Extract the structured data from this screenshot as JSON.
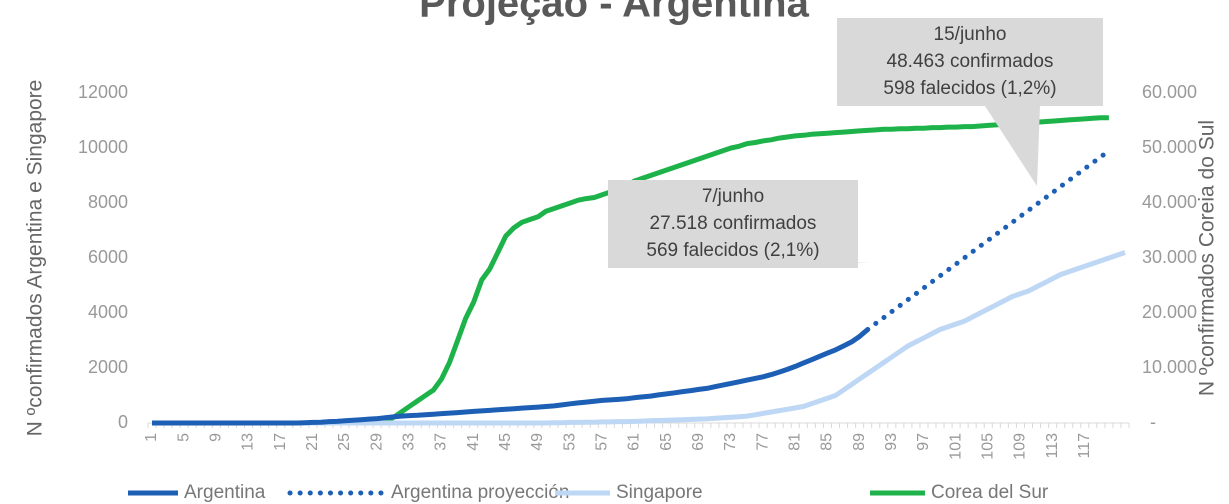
{
  "chart_data": {
    "type": "line",
    "title": "Projeção - Argentina",
    "ylabel": "N ºconfirmados Argentina e Singapore",
    "y2label": "N ºconfirmados Coreia do Sul",
    "categories": [
      1,
      null,
      null,
      null,
      5,
      null,
      null,
      null,
      9,
      null,
      null,
      null,
      13,
      null,
      null,
      null,
      17,
      null,
      null,
      null,
      21,
      null,
      null,
      null,
      25,
      null,
      null,
      null,
      29,
      null,
      null,
      null,
      33,
      null,
      null,
      null,
      37,
      null,
      null,
      null,
      41,
      null,
      null,
      null,
      45,
      null,
      null,
      null,
      49,
      null,
      null,
      null,
      53,
      null,
      null,
      null,
      57,
      null,
      null,
      null,
      61,
      null,
      null,
      null,
      65,
      null,
      null,
      null,
      69,
      null,
      null,
      null,
      73,
      null,
      null,
      null,
      77,
      null,
      null,
      null,
      81,
      null,
      null,
      null,
      85,
      null,
      null,
      null,
      89,
      null,
      null,
      null,
      93,
      null,
      null,
      null,
      97,
      null,
      null,
      null,
      101,
      null,
      null,
      null,
      105,
      null,
      null,
      null,
      109,
      null,
      null,
      null,
      113,
      null,
      null,
      null,
      117,
      null,
      null,
      null,
      null,
      null
    ],
    "ylim": [
      0,
      12000
    ],
    "yticks": [
      0,
      2000,
      4000,
      6000,
      8000,
      10000,
      12000
    ],
    "y2lim": [
      0,
      60000
    ],
    "y2ticks": [
      {
        "value": 0,
        "label": "-"
      },
      {
        "value": 10000,
        "label": "10.000"
      },
      {
        "value": 20000,
        "label": "20.000"
      },
      {
        "value": 30000,
        "label": "30.000"
      },
      {
        "value": 40000,
        "label": "40.000"
      },
      {
        "value": 50000,
        "label": "50.000"
      },
      {
        "value": 60000,
        "label": "60.000"
      }
    ],
    "legend": "bottom",
    "series": [
      {
        "name": "Argentina",
        "color": "#1c5fb5",
        "style": "solid",
        "values": [
          0,
          0,
          0,
          0,
          0,
          0,
          0,
          0,
          0,
          0,
          0,
          0,
          0,
          0,
          0,
          0,
          0,
          0,
          0,
          10,
          20,
          30,
          50,
          60,
          80,
          100,
          120,
          140,
          160,
          190,
          220,
          250,
          270,
          280,
          300,
          320,
          340,
          360,
          380,
          400,
          420,
          440,
          460,
          480,
          500,
          520,
          540,
          560,
          580,
          600,
          620,
          660,
          700,
          730,
          760,
          790,
          820,
          840,
          860,
          880,
          920,
          950,
          980,
          1020,
          1060,
          1100,
          1140,
          1180,
          1220,
          1260,
          1320,
          1380,
          1440,
          1500,
          1560,
          1620,
          1680,
          1760,
          1850,
          1950,
          2060,
          2180,
          2300,
          2420,
          2540,
          2660,
          2800,
          2950,
          3150,
          3400,
          null,
          null,
          null,
          null,
          null,
          null,
          null,
          null,
          null,
          null,
          null,
          null,
          null,
          null,
          null,
          null,
          null,
          null,
          null,
          null,
          null,
          null,
          null,
          null,
          null,
          null,
          null,
          null,
          null,
          null,
          null,
          null
        ]
      },
      {
        "name": "Argentina proyección",
        "color": "#1c5fb5",
        "style": "dotted",
        "values": [
          null,
          null,
          null,
          null,
          null,
          null,
          null,
          null,
          null,
          null,
          null,
          null,
          null,
          null,
          null,
          null,
          null,
          null,
          null,
          null,
          null,
          null,
          null,
          null,
          null,
          null,
          null,
          null,
          null,
          null,
          null,
          null,
          null,
          null,
          null,
          null,
          null,
          null,
          null,
          null,
          null,
          null,
          null,
          null,
          null,
          null,
          null,
          null,
          null,
          null,
          null,
          null,
          null,
          null,
          null,
          null,
          null,
          null,
          null,
          null,
          null,
          null,
          null,
          null,
          null,
          null,
          null,
          null,
          null,
          null,
          null,
          null,
          null,
          null,
          null,
          null,
          null,
          null,
          null,
          null,
          null,
          null,
          null,
          null,
          null,
          null,
          null,
          null,
          null,
          3400,
          3617,
          3833,
          4050,
          4267,
          4483,
          4700,
          4917,
          5133,
          5350,
          5567,
          5783,
          6000,
          6217,
          6433,
          6650,
          6867,
          7083,
          7300,
          7517,
          7733,
          7950,
          8167,
          8383,
          8600,
          8817,
          9033,
          9250,
          9467,
          9683,
          9900,
          null,
          null
        ]
      },
      {
        "name": "Singapore",
        "color": "#bdd7f4",
        "style": "solid",
        "values": [
          0,
          0,
          0,
          0,
          0,
          0,
          0,
          0,
          0,
          0,
          0,
          0,
          0,
          0,
          0,
          0,
          0,
          0,
          0,
          0,
          0,
          0,
          0,
          0,
          0,
          0,
          0,
          0,
          0,
          0,
          0,
          0,
          0,
          0,
          0,
          0,
          0,
          0,
          0,
          0,
          0,
          0,
          0,
          0,
          0,
          0,
          0,
          0,
          0,
          0,
          10,
          10,
          20,
          20,
          30,
          30,
          40,
          40,
          50,
          50,
          60,
          70,
          80,
          90,
          100,
          110,
          120,
          130,
          140,
          150,
          170,
          190,
          210,
          230,
          250,
          300,
          350,
          400,
          450,
          500,
          550,
          600,
          700,
          800,
          900,
          1000,
          1200,
          1400,
          1600,
          1800,
          2000,
          2200,
          2400,
          2600,
          2800,
          2950,
          3100,
          3250,
          3400,
          3500,
          3600,
          3700,
          3850,
          4000,
          4150,
          4300,
          4450,
          4600,
          4700,
          4800,
          4950,
          5100,
          5250,
          5400,
          5500,
          5600,
          5700,
          5800,
          5900,
          6000,
          6100,
          6200
        ]
      },
      {
        "name": "Corea del Sur",
        "color": "#1db34a",
        "style": "solid",
        "axis": "y2",
        "values": [
          0,
          0,
          0,
          0,
          0,
          0,
          0,
          0,
          0,
          0,
          0,
          0,
          0,
          0,
          0,
          0,
          0,
          0,
          0,
          0,
          0,
          0,
          0,
          0,
          0,
          0,
          0,
          0,
          0,
          300,
          1000,
          2000,
          3000,
          4000,
          5000,
          6000,
          8000,
          11000,
          15000,
          19000,
          22000,
          26000,
          28000,
          31000,
          34000,
          35500,
          36500,
          37000,
          37500,
          38500,
          39000,
          39500,
          40000,
          40500,
          40800,
          41000,
          41500,
          42000,
          42500,
          43000,
          44000,
          44500,
          45000,
          45500,
          46000,
          46500,
          47000,
          47500,
          48000,
          48500,
          49000,
          49500,
          50000,
          50300,
          50800,
          51000,
          51300,
          51500,
          51800,
          52000,
          52200,
          52300,
          52500,
          52600,
          52700,
          52800,
          52900,
          53000,
          53100,
          53200,
          53300,
          53400,
          53400,
          53500,
          53500,
          53600,
          53600,
          53700,
          53700,
          53800,
          53800,
          53900,
          53900,
          54000,
          54100,
          54200,
          54300,
          54400,
          54500,
          54600,
          54700,
          54800,
          54900,
          55000,
          55100,
          55200,
          55300,
          55400,
          55500,
          55500,
          null,
          null
        ]
      }
    ],
    "annotations": [
      {
        "lines": [
          "7/junho",
          "27.518 confirmados",
          "569 falecidos (2,1%)"
        ]
      },
      {
        "lines": [
          "15/junho",
          "48.463 confirmados",
          "598 falecidos (1,2%)"
        ]
      }
    ]
  }
}
